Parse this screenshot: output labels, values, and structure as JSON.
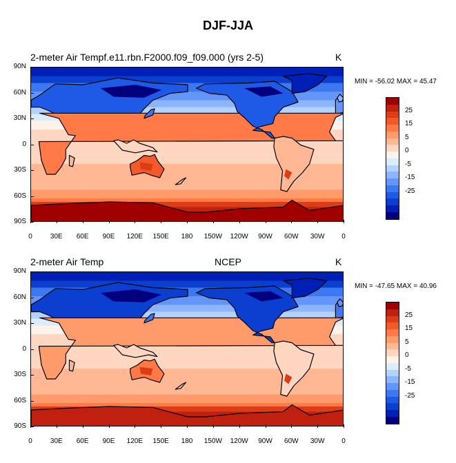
{
  "figure": {
    "title": "DJF-JJA"
  },
  "colorscale": {
    "colors": [
      "#00007f",
      "#0020b5",
      "#0a3fd0",
      "#1e5ae6",
      "#3c78f2",
      "#6496fa",
      "#8cb4ff",
      "#b4d2ff",
      "#dcecff",
      "#fff2e8",
      "#ffd6bf",
      "#ffb893",
      "#ff9a6b",
      "#ff7a47",
      "#f25a2a",
      "#dc3c16",
      "#c02010",
      "#a00000"
    ],
    "labels": [
      "25",
      "15",
      "5",
      "0",
      "-5",
      "-15",
      "-25"
    ]
  },
  "axes": {
    "lat_labels": [
      "90N",
      "60N",
      "30N",
      "0",
      "30S",
      "60S",
      "90S"
    ],
    "lon_labels": [
      "0",
      "30E",
      "60E",
      "90E",
      "120E",
      "150E",
      "180",
      "150W",
      "120W",
      "90W",
      "60W",
      "30W",
      "0"
    ]
  },
  "panels": [
    {
      "title_left": "2-meter Air Tempf.e11.rbn.F2000.f09_f09.000 (yrs 2-5)",
      "title_center": "",
      "units": "K",
      "min_label": "MIN = -56.02",
      "max_label": "MAX =  45.47"
    },
    {
      "title_left": "2-meter Air Temp",
      "title_center": "NCEP",
      "units": "K",
      "min_label": "MIN = -47.65",
      "max_label": "MAX = 40.96"
    }
  ]
}
